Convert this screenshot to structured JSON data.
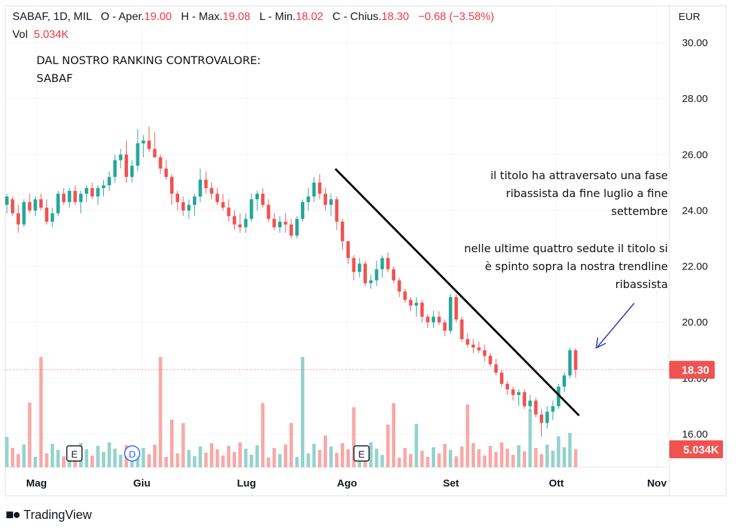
{
  "header": {
    "symbol": "SABAF, 1D, MIL",
    "o_label": "O - Aper.",
    "o_value": "19.00",
    "h_label": "H - Max.",
    "h_value": "19.08",
    "l_label": "L - Min.",
    "l_value": "18.02",
    "c_label": "C - Chius.",
    "c_value": "18.30",
    "change": "−0.68 (−3.58%)",
    "vol_label": "Vol",
    "vol_value": "5.034K"
  },
  "currency": "EUR",
  "annotations": {
    "ranking_line1": "DAL NOSTRO RANKING CONTROVALORE:",
    "ranking_line2": "SABAF",
    "phase_line1": "il titolo ha attraversato una fase",
    "phase_line2": "ribassista da fine luglio a fine",
    "phase_line3": "settembre",
    "break_line1": "nelle ultime quattro sedute il titolo si",
    "break_line2": "è spinto sopra la nostra trendline",
    "break_line3": "ribassista"
  },
  "price_label": "18.30",
  "volume_label": "5.034K",
  "event_markers": [
    "E",
    "D",
    "E"
  ],
  "brand": "TradingView",
  "colors": {
    "up": "#26a69a",
    "down": "#ef5350",
    "up_vol": "#94d3cc",
    "down_vol": "#f7a9a7",
    "trendline": "#000000",
    "arrow": "#2d2db3"
  },
  "chart_data": {
    "type": "candlestick",
    "title": "SABAF, 1D, MIL",
    "y_axis": {
      "ticks": [
        "16.00",
        "18.00",
        "20.00",
        "22.00",
        "24.00",
        "26.00",
        "28.00",
        "30.00"
      ],
      "min": 15.1,
      "max": 30.7,
      "position": "right"
    },
    "x_axis": {
      "ticks": [
        "Mag",
        "Giu",
        "Lug",
        "Ago",
        "Set",
        "Ott",
        "Nov"
      ]
    },
    "series": [
      {
        "name": "price",
        "ohlc_approx": [
          [
            24.2,
            24.6,
            23.9,
            24.5
          ],
          [
            24.4,
            24.5,
            23.8,
            23.9
          ],
          [
            23.9,
            24.2,
            23.2,
            23.5
          ],
          [
            23.5,
            24.4,
            23.4,
            24.3
          ],
          [
            24.3,
            24.6,
            23.9,
            24.0
          ],
          [
            24.0,
            24.5,
            23.8,
            24.4
          ],
          [
            24.4,
            24.6,
            24.0,
            24.1
          ],
          [
            24.1,
            24.4,
            23.5,
            23.6
          ],
          [
            23.6,
            24.1,
            23.4,
            23.9
          ],
          [
            23.9,
            24.7,
            23.8,
            24.6
          ],
          [
            24.6,
            24.8,
            24.2,
            24.3
          ],
          [
            24.3,
            24.8,
            24.1,
            24.7
          ],
          [
            24.7,
            24.9,
            24.2,
            24.3
          ],
          [
            24.3,
            24.7,
            23.9,
            24.6
          ],
          [
            24.6,
            24.9,
            24.3,
            24.8
          ],
          [
            24.8,
            25.0,
            24.4,
            24.5
          ],
          [
            24.5,
            24.9,
            24.2,
            24.8
          ],
          [
            24.8,
            25.1,
            24.5,
            24.9
          ],
          [
            24.9,
            25.4,
            24.7,
            25.2
          ],
          [
            25.2,
            26.0,
            25.0,
            25.8
          ],
          [
            25.8,
            26.2,
            25.5,
            26.0
          ],
          [
            26.0,
            26.5,
            25.0,
            25.2
          ],
          [
            25.2,
            25.8,
            25.0,
            25.6
          ],
          [
            25.6,
            26.9,
            25.4,
            26.4
          ],
          [
            26.4,
            26.7,
            25.9,
            26.5
          ],
          [
            26.5,
            27.0,
            26.1,
            26.2
          ],
          [
            26.2,
            26.8,
            26.0,
            25.9
          ],
          [
            25.9,
            26.0,
            25.3,
            25.5
          ],
          [
            25.5,
            25.8,
            25.1,
            25.2
          ],
          [
            25.2,
            25.3,
            24.2,
            24.6
          ],
          [
            24.6,
            24.7,
            24.0,
            24.3
          ],
          [
            24.3,
            24.5,
            23.8,
            24.0
          ],
          [
            24.0,
            24.4,
            23.7,
            24.2
          ],
          [
            24.2,
            24.6,
            23.8,
            24.5
          ],
          [
            24.5,
            25.5,
            24.3,
            25.1
          ],
          [
            25.1,
            25.4,
            24.6,
            24.8
          ],
          [
            24.8,
            25.0,
            24.4,
            24.6
          ],
          [
            24.6,
            24.8,
            24.2,
            24.3
          ],
          [
            24.3,
            24.6,
            24.0,
            24.1
          ],
          [
            24.1,
            24.4,
            23.6,
            23.8
          ],
          [
            23.8,
            24.0,
            23.3,
            23.5
          ],
          [
            23.5,
            23.9,
            23.2,
            23.4
          ],
          [
            23.4,
            23.9,
            23.2,
            23.7
          ],
          [
            23.7,
            24.6,
            23.6,
            24.4
          ],
          [
            24.4,
            24.7,
            24.0,
            24.6
          ],
          [
            24.6,
            24.8,
            24.1,
            24.2
          ],
          [
            24.2,
            24.4,
            23.6,
            23.7
          ],
          [
            23.7,
            23.9,
            23.3,
            23.4
          ],
          [
            23.4,
            23.8,
            23.2,
            23.6
          ],
          [
            23.6,
            23.9,
            23.2,
            23.5
          ],
          [
            23.5,
            23.7,
            23.0,
            23.1
          ],
          [
            23.1,
            23.8,
            23.0,
            23.7
          ],
          [
            23.7,
            24.4,
            23.6,
            24.3
          ],
          [
            24.3,
            24.8,
            24.0,
            24.5
          ],
          [
            24.5,
            25.2,
            24.3,
            25.0
          ],
          [
            25.0,
            25.3,
            24.4,
            24.6
          ],
          [
            24.6,
            24.8,
            24.0,
            24.2
          ],
          [
            24.2,
            24.6,
            23.8,
            24.4
          ],
          [
            24.4,
            24.5,
            23.3,
            23.6
          ],
          [
            23.6,
            23.7,
            22.6,
            22.9
          ],
          [
            22.9,
            22.9,
            22.1,
            22.3
          ],
          [
            22.3,
            22.4,
            21.5,
            21.8
          ],
          [
            21.8,
            22.3,
            21.6,
            22.1
          ],
          [
            22.1,
            22.2,
            21.3,
            21.4
          ],
          [
            21.4,
            21.7,
            21.2,
            21.5
          ],
          [
            21.5,
            22.2,
            21.3,
            21.9
          ],
          [
            21.9,
            22.4,
            21.6,
            22.3
          ],
          [
            22.3,
            22.5,
            21.8,
            21.9
          ],
          [
            21.9,
            22.0,
            21.4,
            21.5
          ],
          [
            21.5,
            21.6,
            20.9,
            21.1
          ],
          [
            21.1,
            21.2,
            20.7,
            20.8
          ],
          [
            20.8,
            20.9,
            20.4,
            20.6
          ],
          [
            20.6,
            20.9,
            20.2,
            20.7
          ],
          [
            20.7,
            20.8,
            20.0,
            20.2
          ],
          [
            20.2,
            20.3,
            19.8,
            20.0
          ],
          [
            20.0,
            20.4,
            19.8,
            20.2
          ],
          [
            20.2,
            20.4,
            19.9,
            20.0
          ],
          [
            20.0,
            20.1,
            19.5,
            19.7
          ],
          [
            19.7,
            21.0,
            19.6,
            20.9
          ],
          [
            20.9,
            21.0,
            20.0,
            20.1
          ],
          [
            20.1,
            20.2,
            19.3,
            19.4
          ],
          [
            19.4,
            19.6,
            19.1,
            19.2
          ],
          [
            19.2,
            19.4,
            18.9,
            19.1
          ],
          [
            19.1,
            19.3,
            18.9,
            19.0
          ],
          [
            19.0,
            19.2,
            18.6,
            18.8
          ],
          [
            18.8,
            18.9,
            18.4,
            18.5
          ],
          [
            18.5,
            18.7,
            18.1,
            18.2
          ],
          [
            18.2,
            18.3,
            17.7,
            17.8
          ],
          [
            17.8,
            17.9,
            17.4,
            17.6
          ],
          [
            17.6,
            17.7,
            17.2,
            17.4
          ],
          [
            17.4,
            17.6,
            17.0,
            17.5
          ],
          [
            17.5,
            17.6,
            16.9,
            17.0
          ],
          [
            17.0,
            17.4,
            16.8,
            17.2
          ],
          [
            17.2,
            17.3,
            16.6,
            16.7
          ],
          [
            16.7,
            16.9,
            15.9,
            16.4
          ],
          [
            16.4,
            17.0,
            16.2,
            16.8
          ],
          [
            16.8,
            17.2,
            16.5,
            17.0
          ],
          [
            17.0,
            17.8,
            16.9,
            17.7
          ],
          [
            17.7,
            18.2,
            17.5,
            18.1
          ],
          [
            18.1,
            19.1,
            18.0,
            19.0
          ],
          [
            19.0,
            19.08,
            18.02,
            18.3
          ]
        ]
      }
    ],
    "volume": {
      "last": "5.034K"
    },
    "trendline": {
      "from_date": "fine luglio",
      "to_date": "inizio ottobre",
      "from_price": 25.5,
      "to_price": 16.8,
      "style": "black"
    }
  }
}
